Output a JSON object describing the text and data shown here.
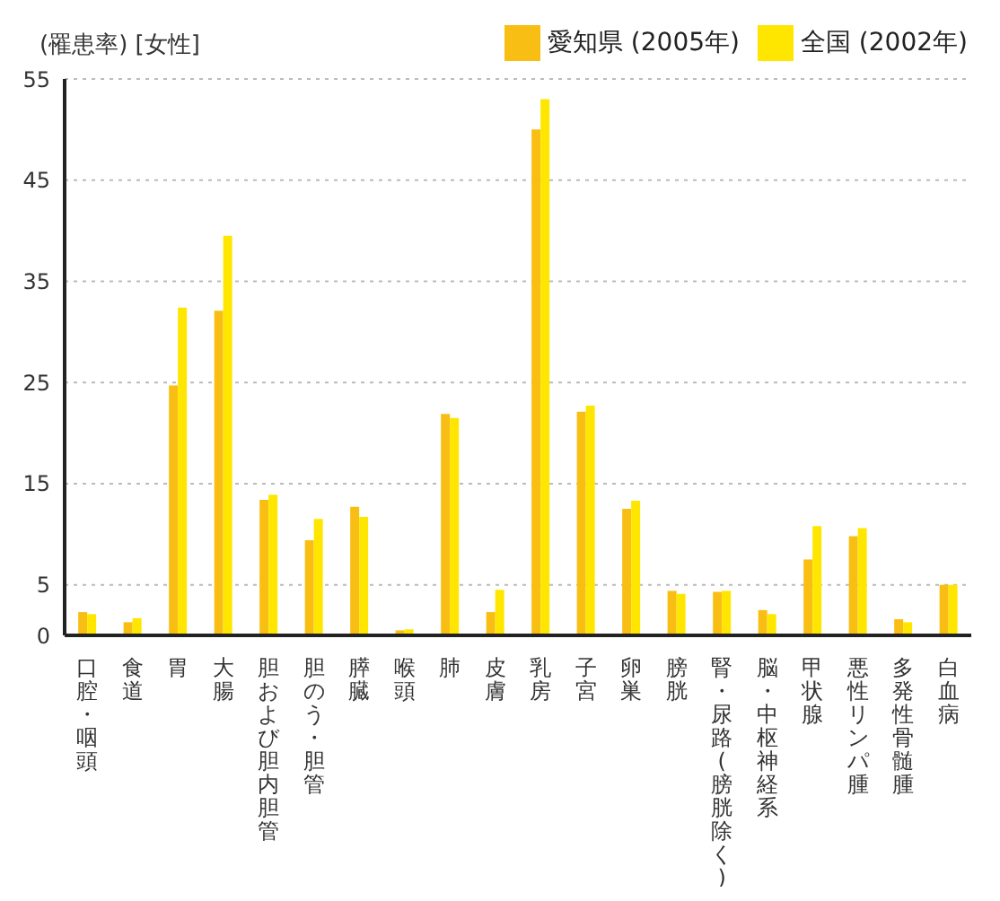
{
  "chart_data": {
    "type": "bar",
    "title": "(罹患率) [女性]",
    "categories": [
      "口腔・咽頭",
      "食道",
      "胃",
      "大腸",
      "胆および胆内胆管",
      "胆のう・胆管",
      "膵臓",
      "喉頭",
      "肺",
      "皮膚",
      "乳房",
      "子宮",
      "卵巣",
      "膀胱",
      "腎・尿路(膀胱除く)",
      "脳・中枢神経系",
      "甲状腺",
      "悪性リンパ腫",
      "多発性骨髄腫",
      "白血病"
    ],
    "series": [
      {
        "name": "愛知県 (2005年)",
        "color": "#f9be14",
        "values": [
          2.3,
          1.3,
          24.7,
          32.1,
          13.4,
          9.4,
          12.7,
          0.5,
          21.9,
          2.3,
          50.0,
          22.1,
          12.5,
          4.4,
          4.3,
          2.5,
          7.5,
          9.8,
          1.6,
          5.0
        ]
      },
      {
        "name": "全国 (2002年)",
        "color": "#ffe600",
        "values": [
          2.1,
          1.7,
          32.4,
          39.5,
          13.9,
          11.5,
          11.7,
          0.6,
          21.5,
          4.5,
          53.0,
          22.7,
          13.3,
          4.1,
          4.4,
          2.1,
          10.8,
          10.6,
          1.3,
          5.0
        ]
      }
    ],
    "ylim": [
      0,
      55
    ],
    "yticks": [
      0,
      5,
      15,
      25,
      35,
      45,
      55
    ],
    "grid": "y",
    "legend": "top right"
  }
}
